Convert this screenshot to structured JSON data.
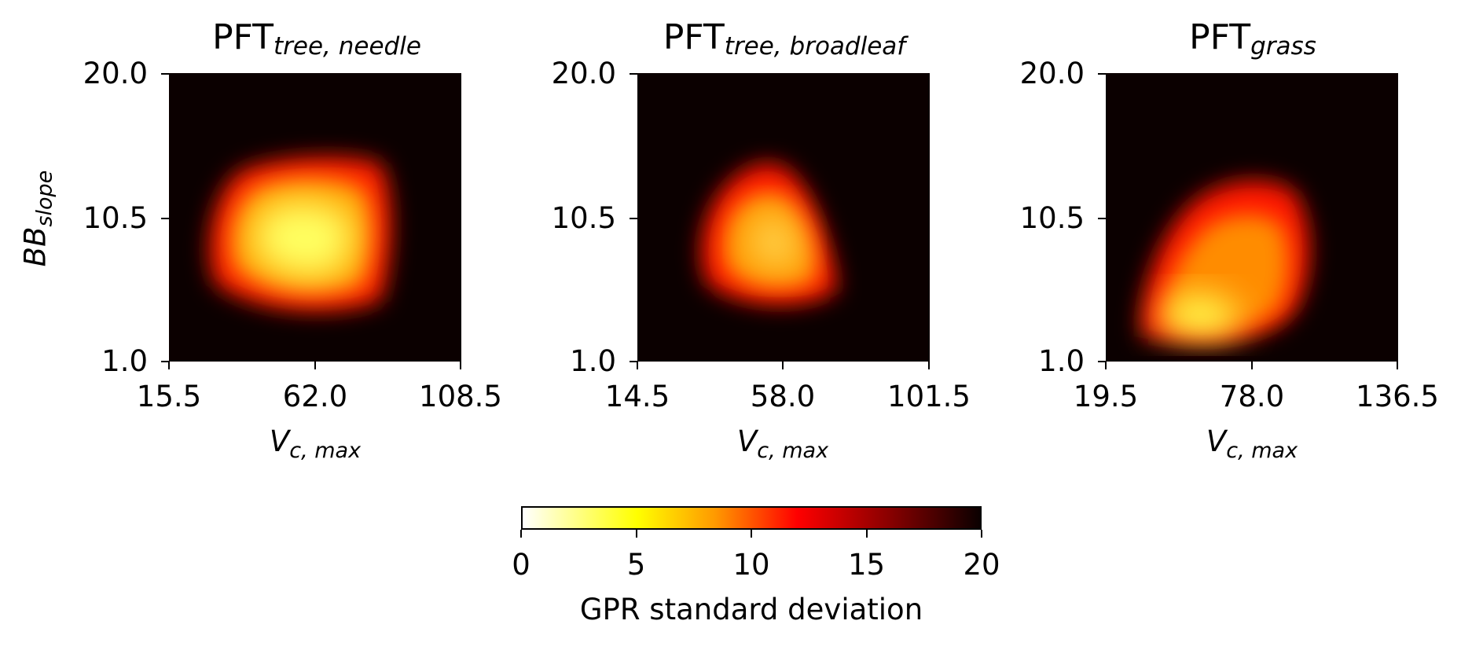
{
  "chart_data": [
    {
      "type": "heatmap",
      "title": "PFT",
      "title_subscript": "tree, needle",
      "xlabel": "V",
      "xlabel_subscript": "c, max",
      "ylabel": "BB",
      "ylabel_subscript": "slope",
      "xticks": [
        "15.5",
        "62.0",
        "108.5"
      ],
      "yticks": [
        "20.0",
        "10.5",
        "1.0"
      ],
      "xlim": [
        15.5,
        108.5
      ],
      "ylim": [
        1.0,
        20.0
      ],
      "low_region_center": [
        60.0,
        7.0
      ],
      "low_region_min_value": 0.5
    },
    {
      "type": "heatmap",
      "title": "PFT",
      "title_subscript": "tree, broadleaf",
      "xlabel": "V",
      "xlabel_subscript": "c, max",
      "xticks": [
        "14.5",
        "58.0",
        "101.5"
      ],
      "yticks": [
        "20.0",
        "10.5",
        "1.0"
      ],
      "xlim": [
        14.5,
        101.5
      ],
      "ylim": [
        1.0,
        20.0
      ],
      "low_region_center": [
        56.0,
        6.0
      ],
      "low_region_min_value": 4
    },
    {
      "type": "heatmap",
      "title": "PFT",
      "title_subscript": "grass",
      "xlabel": "V",
      "xlabel_subscript": "c, max",
      "xticks": [
        "19.5",
        "78.0",
        "136.5"
      ],
      "yticks": [
        "20.0",
        "10.5",
        "1.0"
      ],
      "xlim": [
        19.5,
        136.5
      ],
      "ylim": [
        1.0,
        20.0
      ],
      "low_region_center": [
        55.0,
        3.0
      ],
      "low_region_min_value": 1.5
    }
  ],
  "colorbar": {
    "label": "GPR standard deviation",
    "ticks": [
      "0",
      "5",
      "10",
      "15",
      "20"
    ],
    "range": [
      0,
      20
    ],
    "colormap": "hot_r",
    "colors": [
      "#ffffff",
      "#ffff00",
      "#ff0000",
      "#0b0000"
    ]
  }
}
